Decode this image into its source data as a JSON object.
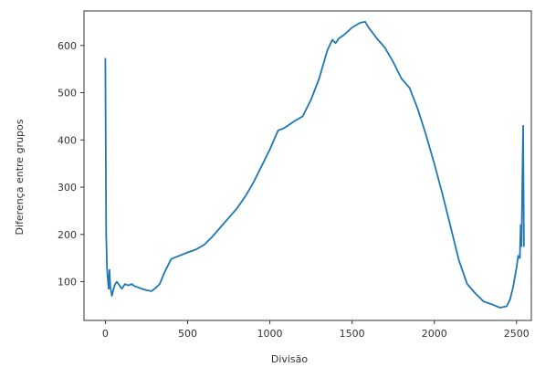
{
  "chart_data": {
    "type": "line",
    "title": "",
    "xlabel": "Divisão",
    "ylabel": "Diferença entre grupos",
    "xlim": [
      -130,
      2590
    ],
    "ylim": [
      18,
      673
    ],
    "xticks": [
      0,
      500,
      1000,
      1500,
      2000,
      2500
    ],
    "yticks": [
      100,
      200,
      300,
      400,
      500,
      600
    ],
    "grid": false,
    "series_color": "#1f77b4",
    "series": [
      {
        "x": [
          0,
          5,
          10,
          15,
          20,
          25,
          30,
          35,
          40,
          50,
          60,
          70,
          80,
          90,
          100,
          120,
          140,
          160,
          180,
          200,
          220,
          250,
          280,
          300,
          330,
          360,
          400,
          450,
          500,
          550,
          600,
          650,
          700,
          750,
          800,
          850,
          900,
          950,
          1000,
          1050,
          1080,
          1100,
          1150,
          1200,
          1250,
          1300,
          1350,
          1380,
          1400,
          1420,
          1450,
          1500,
          1550,
          1580,
          1600,
          1650,
          1700,
          1750,
          1800,
          1850,
          1900,
          1950,
          2000,
          2050,
          2100,
          2150,
          2200,
          2250,
          2300,
          2350,
          2400,
          2440,
          2460,
          2480,
          2500,
          2510,
          2520,
          2525,
          2530,
          2535,
          2540,
          2545
        ],
        "y": [
          572,
          200,
          130,
          105,
          85,
          125,
          90,
          80,
          70,
          85,
          95,
          100,
          95,
          90,
          85,
          95,
          92,
          95,
          90,
          88,
          85,
          82,
          80,
          85,
          95,
          120,
          148,
          155,
          162,
          168,
          178,
          195,
          215,
          235,
          255,
          280,
          310,
          345,
          380,
          420,
          424,
          428,
          440,
          450,
          485,
          530,
          590,
          612,
          605,
          615,
          622,
          638,
          648,
          650,
          638,
          615,
          595,
          565,
          530,
          510,
          465,
          410,
          350,
          285,
          215,
          145,
          95,
          75,
          58,
          52,
          45,
          48,
          62,
          90,
          130,
          155,
          150,
          220,
          175,
          310,
          430,
          175
        ]
      }
    ]
  }
}
